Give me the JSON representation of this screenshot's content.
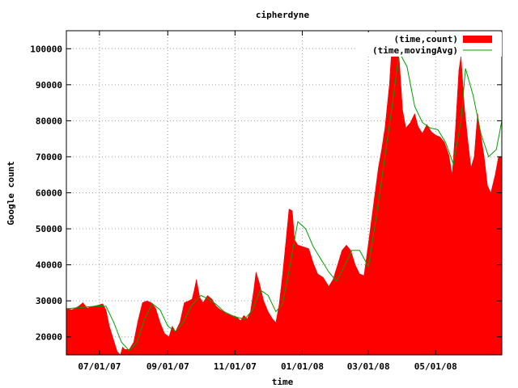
{
  "chart_data": {
    "type": "area",
    "title": "cipherdyne",
    "xlabel": "time",
    "ylabel": "Google count",
    "x_tick_labels": [
      "07/01/07",
      "09/01/07",
      "11/01/07",
      "01/01/08",
      "03/01/08",
      "05/01/08"
    ],
    "y_tick_labels": [
      "20000",
      "30000",
      "40000",
      "50000",
      "60000",
      "70000",
      "80000",
      "90000",
      "100000"
    ],
    "y_ticks": [
      20000,
      30000,
      40000,
      50000,
      60000,
      70000,
      80000,
      90000,
      100000
    ],
    "x_range": [
      "2007-06-01",
      "2008-06-30"
    ],
    "ylim": [
      15000,
      105000
    ],
    "grid": true,
    "legend_position": "top-right",
    "colors": {
      "count": "#ff0000",
      "moving_avg": "#00a000"
    },
    "series": [
      {
        "name": "(time,count)",
        "style": "filled",
        "points": [
          [
            "2007-06-01",
            28000
          ],
          [
            "2007-06-06",
            27500
          ],
          [
            "2007-06-12",
            28500
          ],
          [
            "2007-06-16",
            29500
          ],
          [
            "2007-06-20",
            28000
          ],
          [
            "2007-06-25",
            28500
          ],
          [
            "2007-06-30",
            28800
          ],
          [
            "2007-07-04",
            29200
          ],
          [
            "2007-07-07",
            27500
          ],
          [
            "2007-07-10",
            23000
          ],
          [
            "2007-07-14",
            19000
          ],
          [
            "2007-07-17",
            16000
          ],
          [
            "2007-07-20",
            15000
          ],
          [
            "2007-07-22",
            17200
          ],
          [
            "2007-07-24",
            16500
          ],
          [
            "2007-07-28",
            16500
          ],
          [
            "2007-08-01",
            18500
          ],
          [
            "2007-08-05",
            24500
          ],
          [
            "2007-08-09",
            29500
          ],
          [
            "2007-08-13",
            30000
          ],
          [
            "2007-08-17",
            29500
          ],
          [
            "2007-08-21",
            28000
          ],
          [
            "2007-08-25",
            24000
          ],
          [
            "2007-08-29",
            21000
          ],
          [
            "2007-09-02",
            20000
          ],
          [
            "2007-09-05",
            23000
          ],
          [
            "2007-09-08",
            21500
          ],
          [
            "2007-09-12",
            24000
          ],
          [
            "2007-09-16",
            29500
          ],
          [
            "2007-09-20",
            30000
          ],
          [
            "2007-09-23",
            30500
          ],
          [
            "2007-09-25",
            33000
          ],
          [
            "2007-09-27",
            36000
          ],
          [
            "2007-09-30",
            31000
          ],
          [
            "2007-10-03",
            29500
          ],
          [
            "2007-10-07",
            31500
          ],
          [
            "2007-10-11",
            30500
          ],
          [
            "2007-10-15",
            28500
          ],
          [
            "2007-10-19",
            27500
          ],
          [
            "2007-10-24",
            26500
          ],
          [
            "2007-10-29",
            26000
          ],
          [
            "2007-11-03",
            25500
          ],
          [
            "2007-11-06",
            24500
          ],
          [
            "2007-11-09",
            26000
          ],
          [
            "2007-11-12",
            25000
          ],
          [
            "2007-11-15",
            27000
          ],
          [
            "2007-11-18",
            33000
          ],
          [
            "2007-11-20",
            38000
          ],
          [
            "2007-11-23",
            35000
          ],
          [
            "2007-11-27",
            30000
          ],
          [
            "2007-12-01",
            27000
          ],
          [
            "2007-12-05",
            25000
          ],
          [
            "2007-12-08",
            24000
          ],
          [
            "2007-12-11",
            29000
          ],
          [
            "2007-12-14",
            37000
          ],
          [
            "2007-12-17",
            46000
          ],
          [
            "2007-12-20",
            55500
          ],
          [
            "2007-12-23",
            55000
          ],
          [
            "2007-12-25",
            47000
          ],
          [
            "2007-12-28",
            45500
          ],
          [
            "2008-01-02",
            45000
          ],
          [
            "2008-01-07",
            44500
          ],
          [
            "2008-01-11",
            40500
          ],
          [
            "2008-01-15",
            37500
          ],
          [
            "2008-01-20",
            36500
          ],
          [
            "2008-01-25",
            34000
          ],
          [
            "2008-01-29",
            36000
          ],
          [
            "2008-02-02",
            40000
          ],
          [
            "2008-02-06",
            44000
          ],
          [
            "2008-02-10",
            45500
          ],
          [
            "2008-02-14",
            44000
          ],
          [
            "2008-02-18",
            40000
          ],
          [
            "2008-02-22",
            37500
          ],
          [
            "2008-02-26",
            37000
          ],
          [
            "2008-03-01",
            46000
          ],
          [
            "2008-03-04",
            53000
          ],
          [
            "2008-03-07",
            60000
          ],
          [
            "2008-03-10",
            67000
          ],
          [
            "2008-03-13",
            72000
          ],
          [
            "2008-03-16",
            78000
          ],
          [
            "2008-03-20",
            90000
          ],
          [
            "2008-03-23",
            104500
          ],
          [
            "2008-03-26",
            102500
          ],
          [
            "2008-03-29",
            97000
          ],
          [
            "2008-04-01",
            83000
          ],
          [
            "2008-04-04",
            78000
          ],
          [
            "2008-04-08",
            79500
          ],
          [
            "2008-04-12",
            82000
          ],
          [
            "2008-04-15",
            78500
          ],
          [
            "2008-04-19",
            76500
          ],
          [
            "2008-04-23",
            79000
          ],
          [
            "2008-04-27",
            77000
          ],
          [
            "2008-05-01",
            76000
          ],
          [
            "2008-05-05",
            75500
          ],
          [
            "2008-05-09",
            74000
          ],
          [
            "2008-05-13",
            70500
          ],
          [
            "2008-05-16",
            65000
          ],
          [
            "2008-05-19",
            78000
          ],
          [
            "2008-05-22",
            94000
          ],
          [
            "2008-05-24",
            98000
          ],
          [
            "2008-05-27",
            84000
          ],
          [
            "2008-05-30",
            75000
          ],
          [
            "2008-06-02",
            67000
          ],
          [
            "2008-06-05",
            70000
          ],
          [
            "2008-06-08",
            82000
          ],
          [
            "2008-06-11",
            76000
          ],
          [
            "2008-06-14",
            70000
          ],
          [
            "2008-06-17",
            62000
          ],
          [
            "2008-06-20",
            60000
          ],
          [
            "2008-06-24",
            65000
          ],
          [
            "2008-06-27",
            70000
          ],
          [
            "2008-06-30",
            70000
          ]
        ]
      },
      {
        "name": "(time,movingAvg)",
        "style": "line",
        "points": [
          [
            "2007-06-01",
            27800
          ],
          [
            "2007-06-15",
            28200
          ],
          [
            "2007-07-01",
            28600
          ],
          [
            "2007-07-07",
            28500
          ],
          [
            "2007-07-14",
            24000
          ],
          [
            "2007-07-21",
            18500
          ],
          [
            "2007-07-28",
            16200
          ],
          [
            "2007-08-04",
            18500
          ],
          [
            "2007-08-11",
            25000
          ],
          [
            "2007-08-18",
            29200
          ],
          [
            "2007-08-25",
            27500
          ],
          [
            "2007-09-01",
            23000
          ],
          [
            "2007-09-08",
            21500
          ],
          [
            "2007-09-15",
            24000
          ],
          [
            "2007-09-22",
            28500
          ],
          [
            "2007-10-01",
            31500
          ],
          [
            "2007-10-08",
            30500
          ],
          [
            "2007-10-15",
            29000
          ],
          [
            "2007-10-22",
            27000
          ],
          [
            "2007-11-01",
            25500
          ],
          [
            "2007-11-10",
            25000
          ],
          [
            "2007-11-17",
            27500
          ],
          [
            "2007-11-24",
            33000
          ],
          [
            "2007-12-01",
            31500
          ],
          [
            "2007-12-08",
            27000
          ],
          [
            "2007-12-14",
            29000
          ],
          [
            "2007-12-21",
            40000
          ],
          [
            "2007-12-28",
            52000
          ],
          [
            "2008-01-04",
            50000
          ],
          [
            "2008-01-11",
            45000
          ],
          [
            "2008-01-18",
            41500
          ],
          [
            "2008-01-25",
            38000
          ],
          [
            "2008-02-01",
            35500
          ],
          [
            "2008-02-08",
            39500
          ],
          [
            "2008-02-15",
            44000
          ],
          [
            "2008-02-22",
            44000
          ],
          [
            "2008-03-01",
            39500
          ],
          [
            "2008-03-08",
            53000
          ],
          [
            "2008-03-15",
            68000
          ],
          [
            "2008-03-22",
            83000
          ],
          [
            "2008-03-29",
            99000
          ],
          [
            "2008-04-05",
            95000
          ],
          [
            "2008-04-12",
            84000
          ],
          [
            "2008-04-19",
            79500
          ],
          [
            "2008-04-26",
            78000
          ],
          [
            "2008-05-03",
            77500
          ],
          [
            "2008-05-10",
            74000
          ],
          [
            "2008-05-17",
            68000
          ],
          [
            "2008-05-24",
            80000
          ],
          [
            "2008-05-28",
            94500
          ],
          [
            "2008-06-04",
            87000
          ],
          [
            "2008-06-11",
            76500
          ],
          [
            "2008-06-18",
            70000
          ],
          [
            "2008-06-25",
            72000
          ],
          [
            "2008-06-30",
            80000
          ]
        ]
      }
    ]
  }
}
